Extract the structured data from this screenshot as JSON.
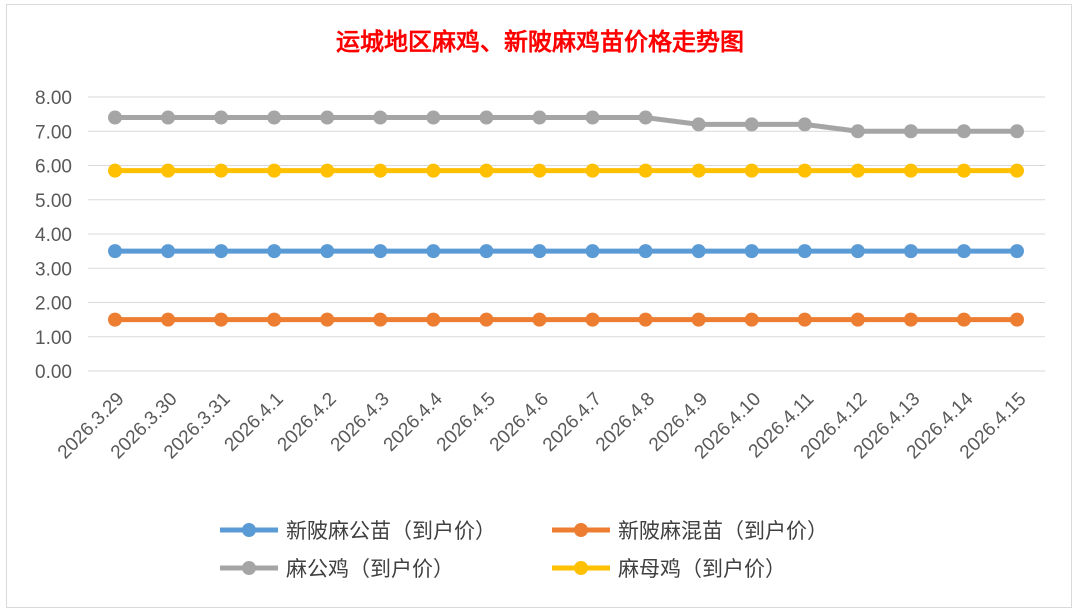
{
  "chart_data": {
    "type": "line",
    "title": "运城地区麻鸡、新陂麻鸡苗价格走势图",
    "xlabel": "",
    "ylabel": "",
    "ylim": [
      0,
      8
    ],
    "yticks": [
      "0.00",
      "1.00",
      "2.00",
      "3.00",
      "4.00",
      "5.00",
      "6.00",
      "7.00",
      "8.00"
    ],
    "grid": true,
    "legend_position": "bottom",
    "categories": [
      "2026.3.29",
      "2026.3.30",
      "2026.3.31",
      "2026.4.1",
      "2026.4.2",
      "2026.4.3",
      "2026.4.4",
      "2026.4.5",
      "2026.4.6",
      "2026.4.7",
      "2026.4.8",
      "2026.4.9",
      "2026.4.10",
      "2026.4.11",
      "2026.4.12",
      "2026.4.13",
      "2026.4.14",
      "2026.4.15"
    ],
    "series": [
      {
        "name": "新陂麻公苗（到户价）",
        "color": "#5b9bd5",
        "values": [
          3.5,
          3.5,
          3.5,
          3.5,
          3.5,
          3.5,
          3.5,
          3.5,
          3.5,
          3.5,
          3.5,
          3.5,
          3.5,
          3.5,
          3.5,
          3.5,
          3.5,
          3.5
        ]
      },
      {
        "name": "新陂麻混苗（到户价）",
        "color": "#ed7d31",
        "values": [
          1.5,
          1.5,
          1.5,
          1.5,
          1.5,
          1.5,
          1.5,
          1.5,
          1.5,
          1.5,
          1.5,
          1.5,
          1.5,
          1.5,
          1.5,
          1.5,
          1.5,
          1.5
        ]
      },
      {
        "name": "麻公鸡（到户价）",
        "color": "#a5a5a5",
        "values": [
          7.4,
          7.4,
          7.4,
          7.4,
          7.4,
          7.4,
          7.4,
          7.4,
          7.4,
          7.4,
          7.4,
          7.2,
          7.2,
          7.2,
          7.0,
          7.0,
          7.0,
          7.0
        ]
      },
      {
        "name": "麻母鸡（到户价）",
        "color": "#ffc000",
        "values": [
          5.85,
          5.85,
          5.85,
          5.85,
          5.85,
          5.85,
          5.85,
          5.85,
          5.85,
          5.85,
          5.85,
          5.85,
          5.85,
          5.85,
          5.85,
          5.85,
          5.85,
          5.85
        ]
      }
    ]
  }
}
